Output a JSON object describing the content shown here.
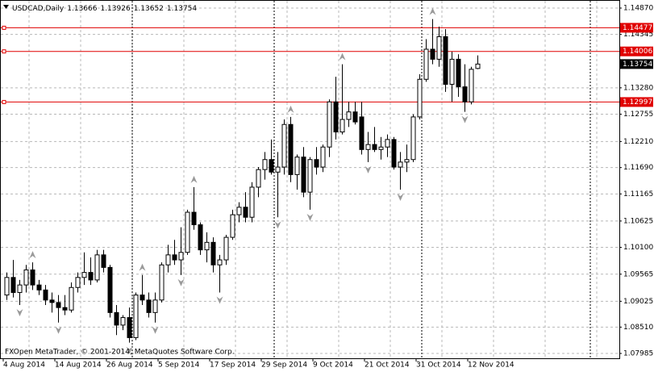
{
  "chart_data": {
    "type": "candlestick",
    "title": "USDCAD,Daily",
    "watermark": "FXOpen MetaTrader, © 2001-2014, MetaQuotes Software Corp.",
    "categories": [
      "4 Aug 2014",
      null,
      null,
      null,
      null,
      null,
      null,
      null,
      "14 Aug 2014",
      null,
      null,
      null,
      null,
      null,
      null,
      null,
      "26 Aug 2014",
      null,
      null,
      null,
      null,
      null,
      null,
      null,
      "5 Sep 2014",
      null,
      null,
      null,
      null,
      null,
      null,
      null,
      "17 Sep 2014",
      null,
      null,
      null,
      null,
      null,
      null,
      null,
      "29 Sep 2014",
      null,
      null,
      null,
      null,
      null,
      null,
      null,
      "9 Oct 2014",
      null,
      null,
      null,
      null,
      null,
      null,
      null,
      "21 Oct 2014",
      null,
      null,
      null,
      null,
      null,
      null,
      null,
      "31 Oct 2014",
      null,
      null,
      null,
      null,
      null,
      null,
      null,
      "12 Nov 2014",
      null
    ],
    "open": [
      1.0915,
      1.095,
      1.092,
      1.0935,
      1.0965,
      1.0935,
      1.0925,
      1.0905,
      1.09,
      1.089,
      1.0885,
      1.093,
      1.095,
      1.096,
      1.0945,
      1.0995,
      1.097,
      1.088,
      1.0855,
      1.087,
      1.083,
      1.0915,
      1.0905,
      1.088,
      1.0905,
      1.0975,
      1.0995,
      1.0985,
      1.1,
      1.108,
      1.1055,
      1.1005,
      1.102,
      1.0975,
      1.0985,
      1.103,
      1.1075,
      1.109,
      1.107,
      1.113,
      1.1165,
      1.1185,
      1.116,
      1.117,
      1.1255,
      1.1155,
      1.119,
      1.112,
      1.1185,
      1.117,
      1.121,
      1.13,
      1.124,
      1.1265,
      1.128,
      1.127,
      1.1205,
      1.1215,
      1.1205,
      1.121,
      1.1225,
      1.117,
      1.118,
      1.1185,
      1.127,
      1.1345,
      1.1405,
      1.1385,
      1.143,
      1.1335,
      1.1385,
      1.133,
      1.13,
      1.13666
    ],
    "high": [
      1.096,
      1.0985,
      1.0945,
      1.0975,
      1.098,
      1.0945,
      1.0935,
      1.092,
      1.0915,
      1.0915,
      1.094,
      1.096,
      1.1,
      1.099,
      1.1005,
      1.1005,
      1.0975,
      1.0895,
      1.0875,
      1.089,
      1.092,
      1.0955,
      1.092,
      1.092,
      1.098,
      1.1015,
      1.1025,
      1.105,
      1.1085,
      1.113,
      1.106,
      1.104,
      1.103,
      1.0995,
      1.1035,
      1.1085,
      1.11,
      1.112,
      1.114,
      1.117,
      1.12,
      1.1225,
      1.12,
      1.1265,
      1.127,
      1.1195,
      1.121,
      1.119,
      1.121,
      1.1215,
      1.1305,
      1.135,
      1.1375,
      1.13,
      1.13,
      1.13,
      1.124,
      1.125,
      1.123,
      1.1235,
      1.123,
      1.12,
      1.1215,
      1.1275,
      1.1355,
      1.1425,
      1.1465,
      1.145,
      1.1445,
      1.14,
      1.1395,
      1.1375,
      1.137,
      1.13926
    ],
    "low": [
      1.0905,
      1.091,
      1.0895,
      1.092,
      1.0925,
      1.0915,
      1.0895,
      1.088,
      1.086,
      1.0875,
      1.088,
      1.092,
      1.0935,
      1.0935,
      1.094,
      1.096,
      1.087,
      1.0835,
      1.0845,
      1.082,
      1.0825,
      1.0895,
      1.087,
      1.086,
      1.09,
      1.096,
      1.0975,
      1.0955,
      1.0995,
      1.1045,
      1.0995,
      1.098,
      1.096,
      1.092,
      1.0975,
      1.1025,
      1.106,
      1.106,
      1.106,
      1.111,
      1.1145,
      1.1155,
      1.107,
      1.1155,
      1.114,
      1.1125,
      1.111,
      1.1085,
      1.1155,
      1.116,
      1.119,
      1.1225,
      1.1235,
      1.125,
      1.1255,
      1.1195,
      1.118,
      1.12,
      1.1185,
      1.119,
      1.1165,
      1.1125,
      1.116,
      1.118,
      1.1265,
      1.134,
      1.1375,
      1.137,
      1.132,
      1.13,
      1.131,
      1.128,
      1.1295,
      1.13652
    ],
    "close": [
      1.095,
      1.092,
      1.0935,
      1.0965,
      1.0935,
      1.0925,
      1.0905,
      1.09,
      1.089,
      1.0885,
      1.093,
      1.095,
      1.096,
      1.0945,
      1.0995,
      1.097,
      1.088,
      1.0855,
      1.087,
      1.083,
      1.0915,
      1.0905,
      1.088,
      1.0905,
      1.0975,
      1.0995,
      1.0985,
      1.1,
      1.108,
      1.1055,
      1.1005,
      1.102,
      1.0975,
      1.0985,
      1.103,
      1.1075,
      1.109,
      1.107,
      1.113,
      1.1165,
      1.1185,
      1.116,
      1.117,
      1.1255,
      1.1155,
      1.119,
      1.112,
      1.1185,
      1.117,
      1.121,
      1.13,
      1.124,
      1.1265,
      1.128,
      1.126,
      1.1205,
      1.1215,
      1.1205,
      1.121,
      1.1225,
      1.117,
      1.118,
      1.1185,
      1.127,
      1.1345,
      1.1405,
      1.1385,
      1.143,
      1.1335,
      1.1385,
      1.133,
      1.13,
      1.1365,
      1.13754
    ],
    "up_color": "#ffffff",
    "down_color": "#000000",
    "outline_color": "#000000",
    "levels": [
      1.14477,
      1.14006,
      1.12997
    ],
    "level_color": "#e00000",
    "ylim": [
      1.07985,
      1.1487
    ],
    "yticks": [
      {
        "value": 1.1487,
        "label": "1.14870"
      },
      1.14345,
      {
        "value": 1.1328,
        "label": "1.13280"
      },
      1.12755,
      {
        "value": 1.1221,
        "label": "1.12210"
      },
      {
        "value": 1.1169,
        "label": "1.11690"
      },
      1.11165,
      1.10625,
      {
        "value": 1.101,
        "label": "1.10100"
      },
      1.09565,
      1.09025,
      {
        "value": 1.0851,
        "label": "1.08510"
      },
      1.07985
    ],
    "grid": true
  }
}
